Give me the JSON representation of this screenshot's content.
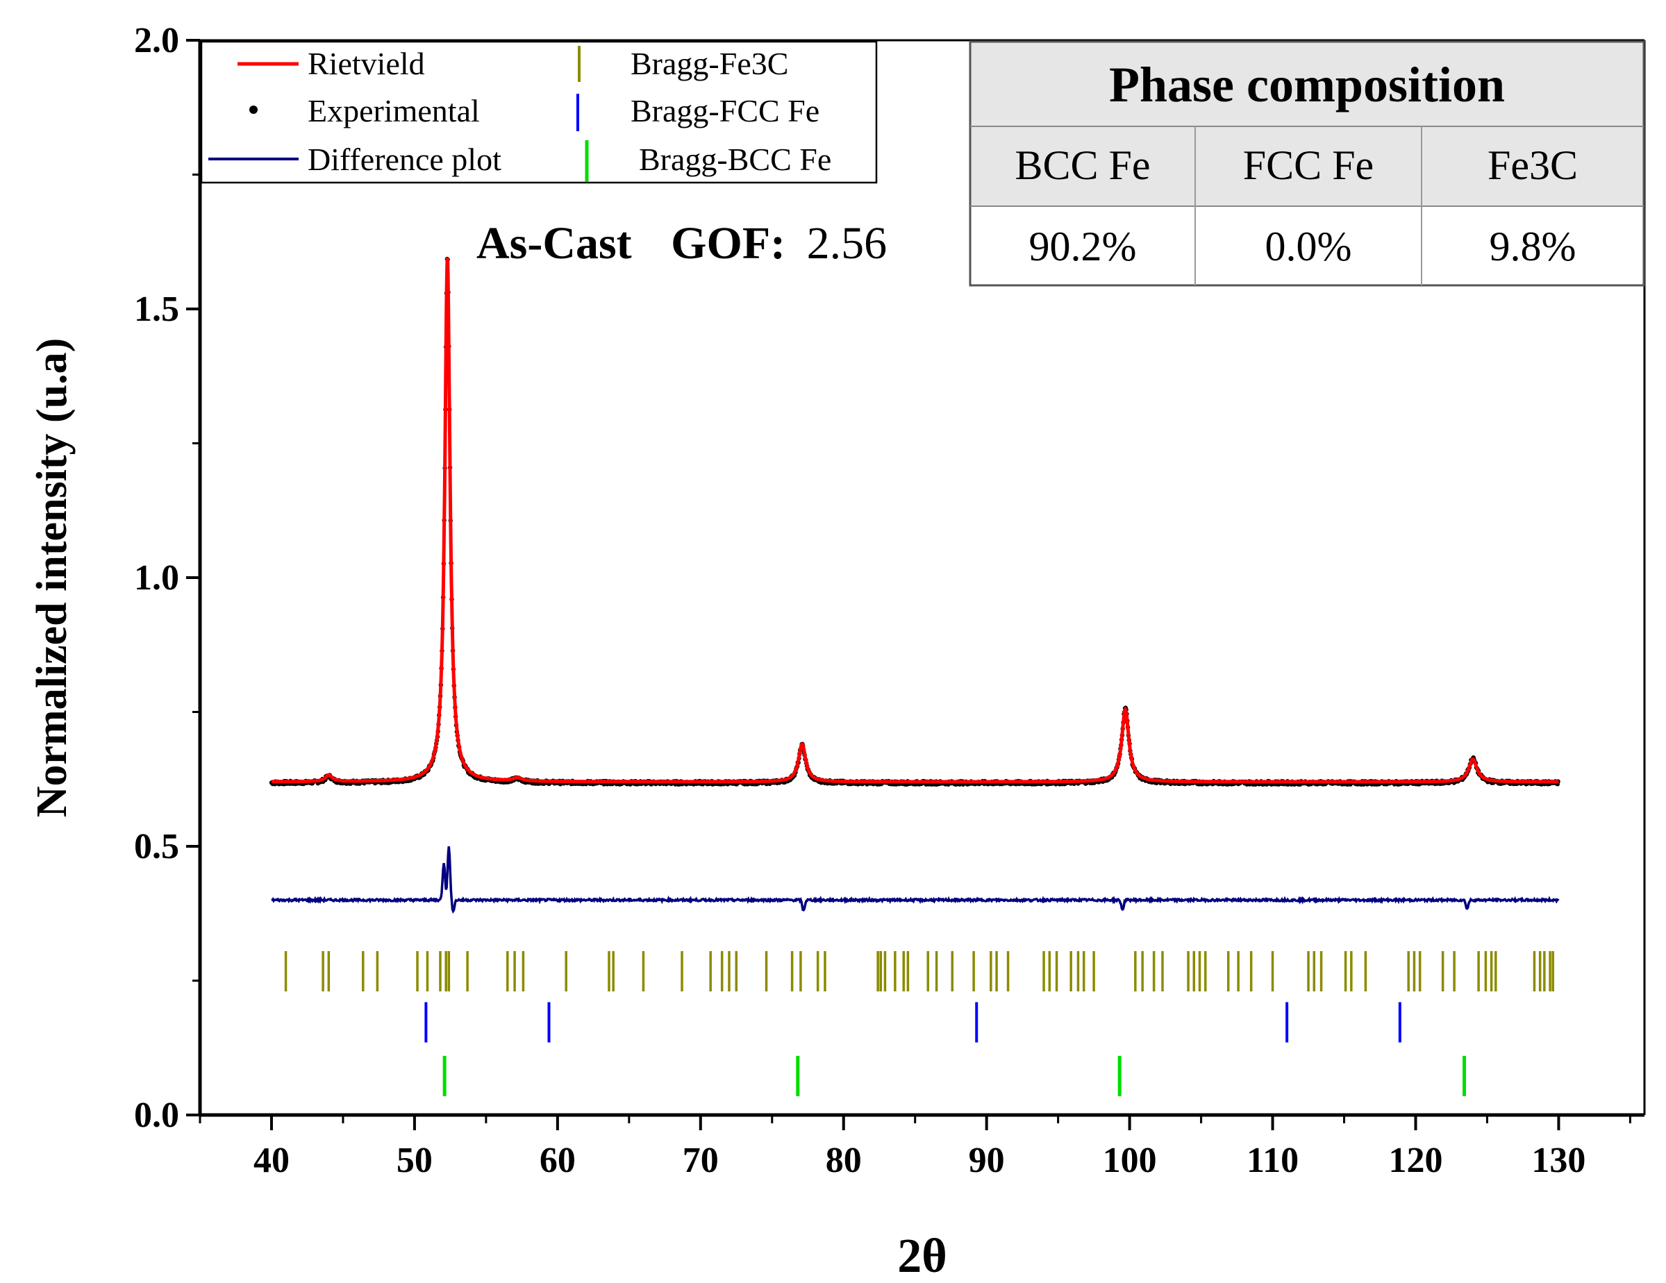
{
  "chart_data": {
    "type": "line",
    "title": "",
    "xlabel": "2θ",
    "ylabel": "Normalized intensity (u.a)",
    "xlim": [
      35,
      136
    ],
    "ylim": [
      0,
      2.0
    ],
    "xticks": [
      40,
      50,
      60,
      70,
      80,
      90,
      100,
      110,
      120,
      130
    ],
    "yticks": [
      "0.0",
      "0.5",
      "1.0",
      "1.5",
      "2.0"
    ],
    "annotation": {
      "sample": "As-Cast",
      "gof_label": "GOF:",
      "gof_value": "2.56"
    },
    "legend": [
      {
        "label": "Rietvield",
        "color": "#ff0000",
        "marker": "line"
      },
      {
        "label": "Experimental",
        "color": "#000000",
        "marker": "dot"
      },
      {
        "label": "Difference plot",
        "color": "#000080",
        "marker": "line"
      },
      {
        "label": "Bragg-Fe3C",
        "color": "#8b8b00",
        "marker": "tick"
      },
      {
        "label": "Bragg-FCC Fe",
        "color": "#0000ff",
        "marker": "tick"
      },
      {
        "label": "Bragg-BCC Fe",
        "color": "#00dd00",
        "marker": "tick"
      }
    ],
    "series": [
      {
        "name": "Rietvield",
        "color": "#ff0000",
        "baseline": 0.62,
        "x_range": [
          40,
          130
        ],
        "peaks": [
          {
            "x": 44.0,
            "h": 0.012,
            "w": 0.3
          },
          {
            "x": 52.3,
            "h": 0.975,
            "w": 0.22
          },
          {
            "x": 57.2,
            "h": 0.006,
            "w": 0.4
          },
          {
            "x": 77.1,
            "h": 0.07,
            "w": 0.3
          },
          {
            "x": 99.7,
            "h": 0.135,
            "w": 0.3
          },
          {
            "x": 124.0,
            "h": 0.042,
            "w": 0.35
          }
        ]
      },
      {
        "name": "Experimental",
        "color": "#000000",
        "baseline": 0.618,
        "x_range": [
          40,
          130
        ],
        "peaks": [
          {
            "x": 44.0,
            "h": 0.012,
            "w": 0.3
          },
          {
            "x": 52.3,
            "h": 0.98,
            "w": 0.22
          },
          {
            "x": 57.2,
            "h": 0.006,
            "w": 0.4
          },
          {
            "x": 77.1,
            "h": 0.07,
            "w": 0.3
          },
          {
            "x": 99.7,
            "h": 0.14,
            "w": 0.3
          },
          {
            "x": 124.0,
            "h": 0.045,
            "w": 0.35
          }
        ]
      },
      {
        "name": "Difference plot",
        "color": "#000080",
        "baseline": 0.4,
        "x_range": [
          40,
          130
        ],
        "features": [
          {
            "x": 52.05,
            "dy": 0.07
          },
          {
            "x": 52.4,
            "dy": 0.1
          },
          {
            "x": 52.7,
            "dy": -0.02
          },
          {
            "x": 77.2,
            "dy": -0.02
          },
          {
            "x": 99.5,
            "dy": -0.018
          },
          {
            "x": 123.6,
            "dy": -0.016
          }
        ]
      }
    ],
    "bragg": {
      "Fe3C": {
        "color": "#8b8b00",
        "y_range": [
          0.23,
          0.305
        ],
        "positions": [
          41.0,
          43.6,
          44.0,
          46.4,
          47.4,
          50.2,
          50.9,
          51.8,
          52.2,
          52.4,
          53.7,
          56.5,
          57.0,
          57.6,
          60.6,
          63.6,
          63.9,
          66.0,
          68.7,
          70.7,
          71.5,
          72.0,
          72.5,
          74.6,
          76.4,
          77.0,
          78.2,
          78.7,
          82.4,
          82.6,
          82.9,
          83.6,
          84.2,
          84.5,
          85.9,
          86.5,
          87.6,
          89.1,
          90.3,
          90.7,
          91.5,
          94.0,
          94.4,
          94.9,
          95.9,
          96.4,
          96.8,
          97.5,
          100.4,
          100.9,
          101.7,
          102.3,
          104.1,
          104.5,
          104.9,
          105.3,
          106.9,
          107.6,
          108.5,
          110.0,
          112.5,
          112.9,
          113.4,
          115.1,
          115.5,
          116.5,
          119.5,
          119.9,
          120.3,
          121.9,
          122.7,
          124.4,
          124.9,
          125.3,
          125.6,
          128.3,
          128.7,
          129.0,
          129.4,
          129.6
        ]
      },
      "FCC": {
        "color": "#0000ff",
        "y_range": [
          0.135,
          0.21
        ],
        "positions": [
          50.8,
          59.4,
          89.3,
          111.0,
          118.9
        ]
      },
      "BCC": {
        "color": "#00dd00",
        "y_range": [
          0.035,
          0.11
        ],
        "positions": [
          52.1,
          76.8,
          99.3,
          123.4
        ]
      }
    }
  },
  "table": {
    "title": "Phase composition",
    "headers": [
      "BCC Fe",
      "FCC Fe",
      "Fe3C"
    ],
    "values": [
      "90.2%",
      "0.0%",
      "9.8%"
    ]
  }
}
